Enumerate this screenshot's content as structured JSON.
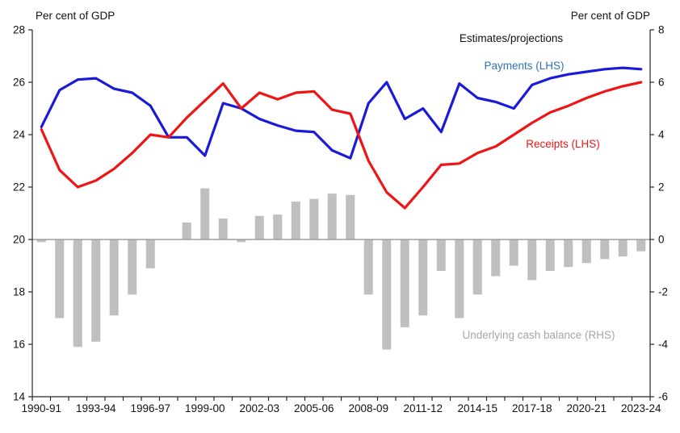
{
  "chart_data": {
    "type": "line+bar",
    "title_left_axis": "Per cent of GDP",
    "title_right_axis": "Per cent of GDP",
    "annotation": "Estimates/projections",
    "legend_position": "inline-annotations",
    "grid": "off",
    "background": "#ffffff",
    "years": [
      "1990-91",
      "1991-92",
      "1992-93",
      "1993-94",
      "1994-95",
      "1995-96",
      "1996-97",
      "1997-98",
      "1998-99",
      "1999-00",
      "2000-01",
      "2001-02",
      "2002-03",
      "2003-04",
      "2004-05",
      "2005-06",
      "2006-07",
      "2007-08",
      "2008-09",
      "2009-10",
      "2010-11",
      "2011-12",
      "2012-13",
      "2013-14",
      "2014-15",
      "2015-16",
      "2016-17",
      "2017-18",
      "2018-19",
      "2019-20",
      "2020-21",
      "2021-22",
      "2022-23",
      "2023-24"
    ],
    "x_tick_labels": [
      "1990-91",
      "1993-94",
      "1996-97",
      "1999-00",
      "2002-03",
      "2005-06",
      "2008-09",
      "2011-12",
      "2014-15",
      "2017-18",
      "2020-21",
      "2023-24"
    ],
    "lhs_axis": {
      "min": 14,
      "max": 28,
      "ticks": [
        28,
        26,
        24,
        22,
        20,
        18,
        16,
        14
      ]
    },
    "rhs_axis": {
      "min": -6,
      "max": 8,
      "ticks": [
        8,
        6,
        4,
        2,
        0,
        -2,
        -4,
        -6
      ]
    },
    "series": [
      {
        "name": "Payments (LHS)",
        "type": "line",
        "axis": "LHS",
        "color": "#1a1ad9",
        "label_color": "#2e74b5",
        "values": [
          24.3,
          25.7,
          26.1,
          26.15,
          25.75,
          25.6,
          25.1,
          23.9,
          23.9,
          23.2,
          25.2,
          25.0,
          24.6,
          24.35,
          24.15,
          24.1,
          23.4,
          23.1,
          25.2,
          26.0,
          24.6,
          25.0,
          24.1,
          25.95,
          25.4,
          25.25,
          25.0,
          25.9,
          26.15,
          26.3,
          26.4,
          26.5,
          26.55,
          26.5
        ]
      },
      {
        "name": "Receipts (LHS)",
        "type": "line",
        "axis": "LHS",
        "color": "#ed1515",
        "label_color": "#ed1515",
        "values": [
          24.2,
          22.65,
          22.0,
          22.25,
          22.7,
          23.3,
          24.0,
          23.9,
          24.65,
          25.3,
          25.95,
          25.0,
          25.6,
          25.35,
          25.6,
          25.65,
          24.95,
          24.8,
          23.0,
          21.8,
          21.2,
          22.0,
          22.85,
          22.9,
          23.3,
          23.55,
          24.0,
          24.45,
          24.85,
          25.1,
          25.4,
          25.65,
          25.85,
          26.0
        ]
      },
      {
        "name": "Underlying cash balance (RHS)",
        "type": "bar",
        "axis": "RHS",
        "color": "#bfbfbf",
        "label_color": "#a6a6a6",
        "values": [
          -0.1,
          -3.0,
          -4.1,
          -3.9,
          -2.9,
          -2.1,
          -1.1,
          0.0,
          0.65,
          1.95,
          0.8,
          -0.1,
          0.9,
          0.95,
          1.45,
          1.55,
          1.75,
          1.7,
          -2.1,
          -4.2,
          -3.35,
          -2.9,
          -1.2,
          -3.0,
          -2.1,
          -1.4,
          -1.0,
          -1.55,
          -1.2,
          -1.05,
          -0.9,
          -0.75,
          -0.65,
          -0.45
        ]
      }
    ],
    "axis_color": "#262626",
    "zero_line_color": "#9e9e9e",
    "tick_label_color": "#111111"
  }
}
